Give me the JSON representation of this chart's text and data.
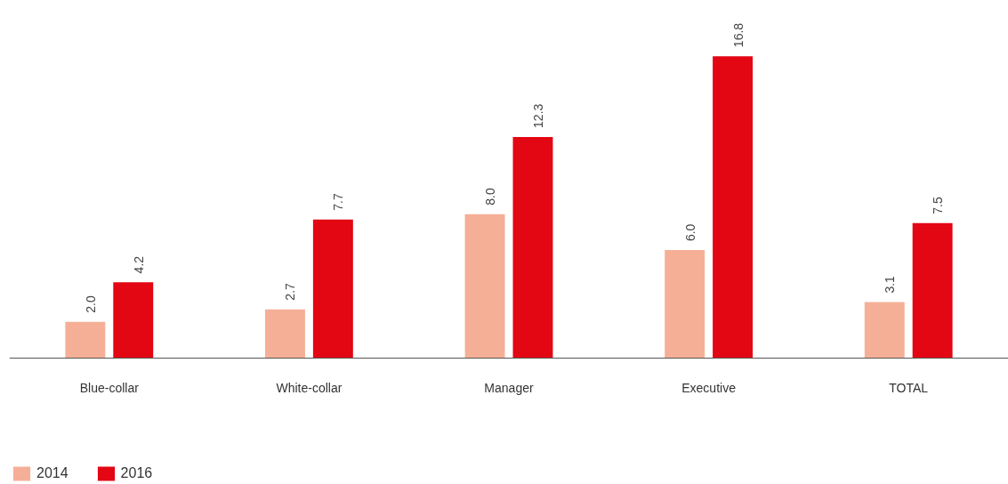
{
  "chart_data": {
    "type": "bar",
    "categories": [
      "Blue-collar",
      "White-collar",
      "Manager",
      "Executive",
      "TOTAL"
    ],
    "series": [
      {
        "name": "2014",
        "color": "#f5af96",
        "values": [
          2.0,
          2.7,
          8.0,
          6.0,
          3.1
        ],
        "value_labels": [
          "2.0",
          "2.7",
          "8.0",
          "6.0",
          "3.1"
        ]
      },
      {
        "name": "2016",
        "color": "#e30613",
        "values": [
          4.2,
          7.7,
          12.3,
          16.8,
          7.5
        ],
        "value_labels": [
          "4.2",
          "7.7",
          "12.3",
          "16.8",
          "7.5"
        ]
      }
    ],
    "legend": "bottom left"
  }
}
